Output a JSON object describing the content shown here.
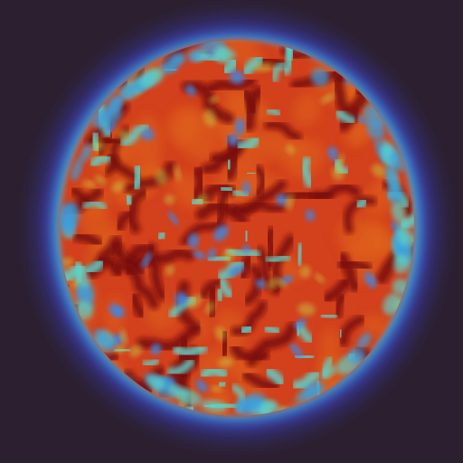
{
  "image": {
    "subject": "",
    "colors": {
      "background": "#2c2030",
      "rim_outer": "#3b3aa8",
      "rim_mid": "#3aa0e0",
      "rim_inner": "#7ee39a",
      "field_base": "#d2401e",
      "pattern_dark": "#7a0c10",
      "pattern_hot": "#e0641c",
      "pattern_cool": "#5fd2c8",
      "pattern_cold": "#3f86e0",
      "pattern_warm": "#c9d84a"
    }
  }
}
